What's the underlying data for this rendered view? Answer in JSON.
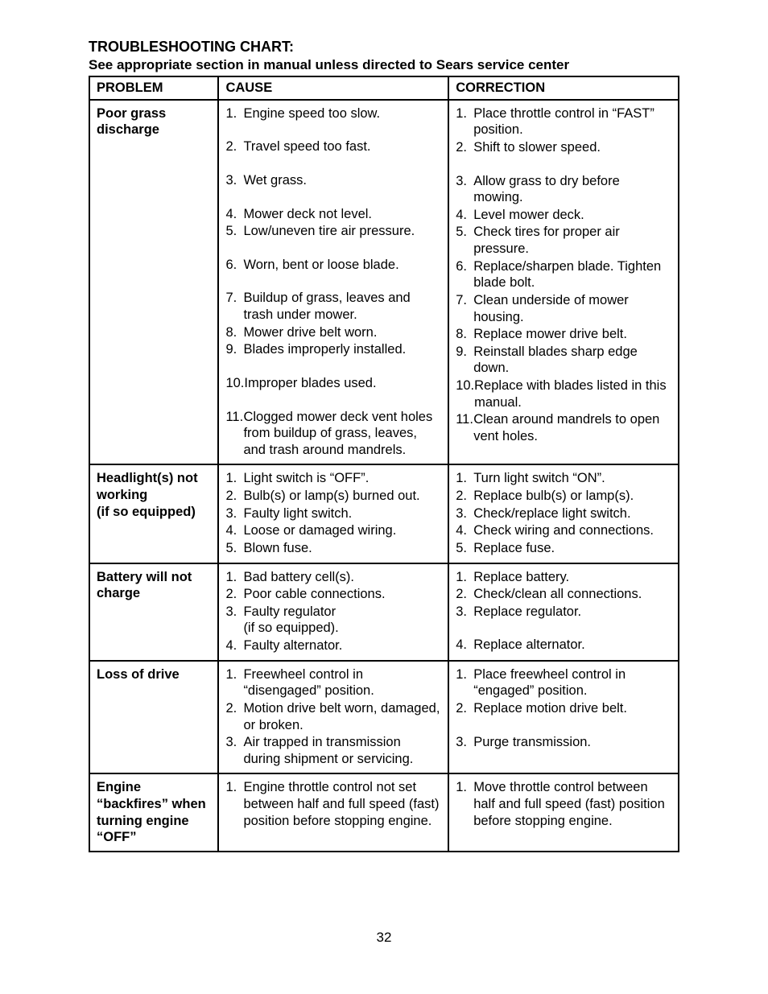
{
  "title": "TROUBLESHOOTING CHART:",
  "subtitle": "See appropriate section in manual unless directed to Sears service center",
  "headers": {
    "problem": "PROBLEM",
    "cause": "CAUSE",
    "correction": "CORRECTION"
  },
  "rows": [
    {
      "problem": "Poor grass discharge",
      "causes": [
        {
          "n": "1.",
          "t": "Engine speed too slow.",
          "gap": true
        },
        {
          "n": "2.",
          "t": "Travel speed too fast.",
          "gap": true
        },
        {
          "n": "3.",
          "t": "Wet grass.",
          "gap": true
        },
        {
          "n": "4.",
          "t": "Mower deck not level."
        },
        {
          "n": "5.",
          "t": "Low/uneven tire air pressure.",
          "gap": true
        },
        {
          "n": "6.",
          "t": "Worn, bent or loose blade.",
          "gap": true
        },
        {
          "n": "7.",
          "t": "Buildup of grass, leaves and trash under mower."
        },
        {
          "n": "8.",
          "t": "Mower drive belt worn."
        },
        {
          "n": "9.",
          "t": "Blades improperly installed.",
          "gap": true
        },
        {
          "n": "10.",
          "t": "Improper blades used.",
          "gap": true
        },
        {
          "n": "11.",
          "t": "Clogged mower deck vent holes from buildup of grass, leaves, and trash around mandrels."
        }
      ],
      "corrections": [
        {
          "n": "1.",
          "t": "Place throttle control in “FAST” position."
        },
        {
          "n": "2.",
          "t": "Shift to slower speed.",
          "gap": true
        },
        {
          "n": "3.",
          "t": "Allow grass to dry before mowing."
        },
        {
          "n": "4.",
          "t": "Level mower deck."
        },
        {
          "n": "5.",
          "t": "Check tires for proper air pressure."
        },
        {
          "n": "6.",
          "t": "Replace/sharpen blade. Tighten blade bolt."
        },
        {
          "n": "7.",
          "t": "Clean underside of mower housing."
        },
        {
          "n": "8.",
          "t": "Replace mower drive belt."
        },
        {
          "n": "9.",
          "t": "Reinstall blades sharp edge down."
        },
        {
          "n": "10.",
          "t": "Replace with blades listed in this manual."
        },
        {
          "n": "11.",
          "t": "Clean around mandrels to open vent holes."
        }
      ]
    },
    {
      "problem": "Headlight(s) not working\n(if so equipped)",
      "causes": [
        {
          "n": "1.",
          "t": "Light switch is “OFF”."
        },
        {
          "n": "2.",
          "t": "Bulb(s) or lamp(s) burned out."
        },
        {
          "n": "3.",
          "t": "Faulty light switch."
        },
        {
          "n": "4.",
          "t": "Loose or damaged wiring."
        },
        {
          "n": "5.",
          "t": "Blown fuse."
        }
      ],
      "corrections": [
        {
          "n": "1.",
          "t": "Turn light switch “ON”."
        },
        {
          "n": "2.",
          "t": "Replace bulb(s) or lamp(s)."
        },
        {
          "n": "3.",
          "t": "Check/replace light switch."
        },
        {
          "n": "4.",
          "t": "Check wiring and connections."
        },
        {
          "n": "5.",
          "t": "Replace fuse."
        }
      ]
    },
    {
      "problem": "Battery will not charge",
      "causes": [
        {
          "n": "1.",
          "t": "Bad battery cell(s)."
        },
        {
          "n": "2.",
          "t": "Poor cable connections."
        },
        {
          "n": "3.",
          "t": "Faulty regulator\n(if so equipped)."
        },
        {
          "n": "4.",
          "t": "Faulty alternator."
        }
      ],
      "corrections": [
        {
          "n": "1.",
          "t": "Replace battery."
        },
        {
          "n": "2.",
          "t": "Check/clean all connections."
        },
        {
          "n": "3.",
          "t": "Replace regulator.",
          "gap": true
        },
        {
          "n": "4.",
          "t": "Replace alternator."
        }
      ]
    },
    {
      "problem": "Loss of drive",
      "causes": [
        {
          "n": "1.",
          "t": "Freewheel control in “disengaged” position."
        },
        {
          "n": "2.",
          "t": "Motion drive belt worn, damaged, or broken."
        },
        {
          "n": "3.",
          "t": "Air trapped in transmission during shipment or servicing."
        }
      ],
      "corrections": [
        {
          "n": "1.",
          "t": "Place freewheel control in “engaged” position."
        },
        {
          "n": "2.",
          "t": "Replace motion drive belt.",
          "gap": true
        },
        {
          "n": "3.",
          "t": "Purge transmission."
        }
      ]
    },
    {
      "problem": "Engine “backfires” when turning engine “OFF”",
      "causes": [
        {
          "n": "1.",
          "t": "Engine throttle control not set between half and full speed (fast) position before stopping engine."
        }
      ],
      "corrections": [
        {
          "n": "1.",
          "t": "Move throttle control between half and full speed (fast) position before stopping engine."
        }
      ]
    }
  ],
  "page_number": "32"
}
